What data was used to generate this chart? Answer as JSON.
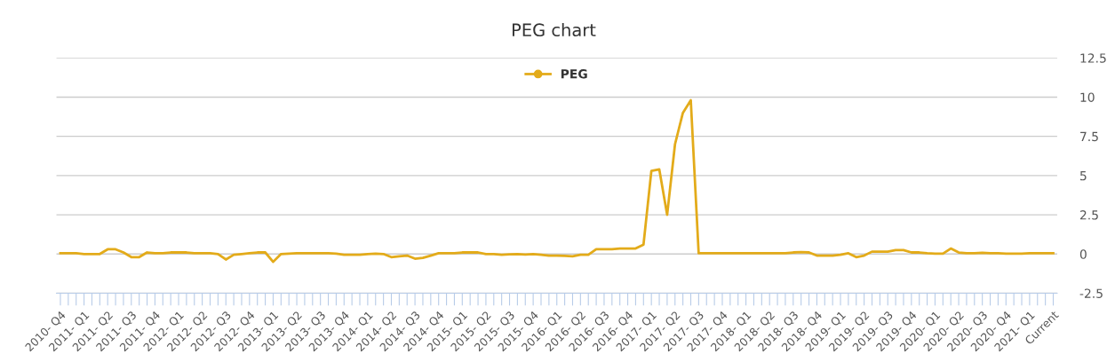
{
  "chart_data": {
    "type": "line",
    "title": "PEG chart",
    "categories": [
      "2010- Q4",
      null,
      null,
      "2011- Q1",
      null,
      null,
      "2011- Q2",
      null,
      null,
      "2011- Q3",
      null,
      null,
      "2011- Q4",
      null,
      null,
      "2012- Q1",
      null,
      null,
      "2012- Q2",
      null,
      null,
      "2012- Q3",
      null,
      null,
      "2012- Q4",
      null,
      null,
      "2013- Q1",
      null,
      null,
      "2013- Q2",
      null,
      null,
      "2013- Q3",
      null,
      null,
      "2013- Q4",
      null,
      null,
      "2014- Q1",
      null,
      null,
      "2014- Q2",
      null,
      null,
      "2014- Q3",
      null,
      null,
      "2014- Q4",
      null,
      null,
      "2015- Q1",
      null,
      null,
      "2015- Q2",
      null,
      null,
      "2015- Q3",
      null,
      null,
      "2015- Q4",
      null,
      null,
      "2016- Q1",
      null,
      null,
      "2016- Q2",
      null,
      null,
      "2016- Q3",
      null,
      null,
      "2016- Q4",
      null,
      null,
      "2017- Q1",
      null,
      null,
      "2017- Q2",
      null,
      null,
      "2017- Q3",
      null,
      null,
      "2017- Q4",
      null,
      null,
      "2018- Q1",
      null,
      null,
      "2018- Q2",
      null,
      null,
      "2018- Q3",
      null,
      null,
      "2018- Q4",
      null,
      null,
      "2019- Q1",
      null,
      null,
      "2019- Q2",
      null,
      null,
      "2019- Q3",
      null,
      null,
      "2019- Q4",
      null,
      null,
      "2020- Q1",
      null,
      null,
      "2020- Q2",
      null,
      null,
      "2020- Q3",
      null,
      null,
      "2020- Q4",
      null,
      null,
      "2021- Q1",
      null,
      null,
      "Current"
    ],
    "series": [
      {
        "name": "PEG",
        "color": "#e3ab1a",
        "values": [
          0.05,
          0.05,
          0.05,
          0,
          0,
          0,
          0.3,
          0.3,
          0.1,
          -0.2,
          -0.2,
          0.1,
          0.05,
          0.05,
          0.1,
          0.1,
          0.1,
          0.05,
          0.05,
          0.05,
          0,
          -0.35,
          -0.05,
          0,
          0.05,
          0.1,
          0.1,
          -0.5,
          0,
          0.02,
          0.05,
          0.05,
          0.05,
          0.05,
          0.05,
          0.02,
          -0.05,
          -0.05,
          -0.05,
          0,
          0.02,
          0,
          -0.2,
          -0.15,
          -0.1,
          -0.3,
          -0.25,
          -0.1,
          0.05,
          0.05,
          0.05,
          0.1,
          0.1,
          0.1,
          0,
          0,
          -0.05,
          -0.02,
          0,
          -0.03,
          0,
          -0.05,
          -0.1,
          -0.1,
          -0.12,
          -0.15,
          -0.05,
          -0.05,
          0.3,
          0.3,
          0.3,
          0.35,
          0.35,
          0.35,
          0.6,
          5.3,
          5.4,
          2.5,
          7,
          9,
          9.8,
          0.05,
          0.05,
          0.05,
          0.05,
          0.05,
          0.05,
          0.05,
          0.05,
          0.05,
          0.05,
          0.05,
          0.05,
          0.1,
          0.12,
          0.1,
          -0.1,
          -0.1,
          -0.1,
          -0.05,
          0.05,
          -0.2,
          -0.1,
          0.15,
          0.15,
          0.15,
          0.25,
          0.25,
          0.1,
          0.1,
          0.05,
          0.02,
          0.02,
          0.35,
          0.1,
          0.05,
          0.05,
          0.08,
          0.05,
          0.05,
          0.02,
          0.02,
          0.02,
          0.05,
          0.05,
          0.05,
          0.05
        ]
      }
    ],
    "ylim": [
      -2.5,
      12.5
    ],
    "yticks": [
      -2.5,
      0,
      2.5,
      5,
      7.5,
      10,
      12.5
    ],
    "grid": "y",
    "legend": "top"
  }
}
